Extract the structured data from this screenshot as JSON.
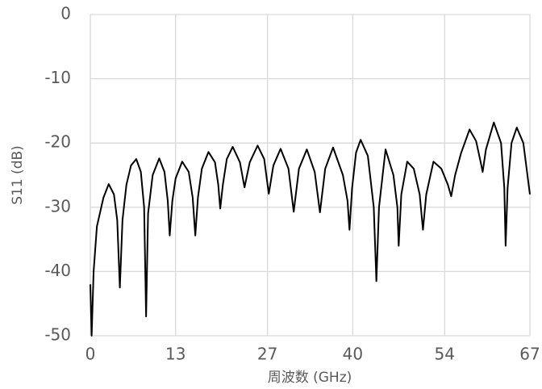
{
  "chart_data": {
    "type": "line",
    "x_label": "周波数 (GHz)",
    "y_label": "S11 (dB)",
    "xlim": [
      0,
      67
    ],
    "xticks": [
      0,
      13,
      27,
      40,
      54,
      67
    ],
    "ylim": [
      -50,
      0
    ],
    "yticks": [
      -50,
      -40,
      -30,
      -20,
      -10,
      0
    ],
    "grid": true,
    "series": [
      {
        "name": "S11",
        "color": "#000000",
        "x": [
          0,
          0.2,
          0.5,
          1,
          2,
          2.8,
          3.6,
          4.1,
          4.5,
          4.9,
          5.5,
          6.2,
          7,
          7.7,
          8.2,
          8.5,
          8.8,
          9.5,
          10.5,
          11.3,
          11.8,
          12.1,
          12.5,
          13,
          14,
          15,
          15.6,
          16,
          16.4,
          17,
          18,
          19,
          19.5,
          19.8,
          20.2,
          20.8,
          21.7,
          22.8,
          23.5,
          24.3,
          25.5,
          26.5,
          27.2,
          27.9,
          29,
          30.2,
          31,
          31.8,
          33,
          34.2,
          35,
          35.8,
          37,
          38.5,
          39.2,
          39.5,
          39.9,
          40.5,
          41.2,
          42.3,
          43.2,
          43.6,
          44,
          45,
          46.2,
          46.8,
          47,
          47.4,
          48.3,
          49.3,
          50.2,
          50.7,
          51.2,
          52.3,
          53.5,
          54.5,
          55,
          55.6,
          56.5,
          57.8,
          58.8,
          59.5,
          59.8,
          60.3,
          61.5,
          62.6,
          63.1,
          63.3,
          63.6,
          64.2,
          65,
          66,
          67
        ],
        "values": [
          -42,
          -50,
          -40,
          -33,
          -28.5,
          -26.4,
          -28,
          -32,
          -42.5,
          -32,
          -26.5,
          -23.5,
          -22.5,
          -24.5,
          -30,
          -47,
          -31,
          -25,
          -22.4,
          -24.5,
          -29,
          -34.4,
          -29,
          -25.5,
          -22.9,
          -24.5,
          -28.5,
          -34.4,
          -28.5,
          -24,
          -21.4,
          -23,
          -26.5,
          -30.2,
          -26.5,
          -22.5,
          -20.6,
          -23,
          -26.9,
          -23,
          -20.4,
          -22.5,
          -27.9,
          -23.5,
          -20.9,
          -24,
          -30.7,
          -24,
          -21,
          -24.5,
          -30.8,
          -24,
          -20.7,
          -25,
          -29,
          -33.5,
          -27,
          -21.5,
          -19.5,
          -22,
          -30,
          -41.5,
          -30,
          -21,
          -25,
          -30,
          -36,
          -28,
          -22.9,
          -24,
          -28,
          -33.5,
          -28,
          -22.9,
          -24,
          -26.5,
          -28.3,
          -25,
          -21.6,
          -17.9,
          -19.7,
          -23,
          -24.5,
          -21,
          -16.8,
          -20,
          -27,
          -36,
          -27,
          -20,
          -17.6,
          -20,
          -28
        ]
      }
    ]
  }
}
